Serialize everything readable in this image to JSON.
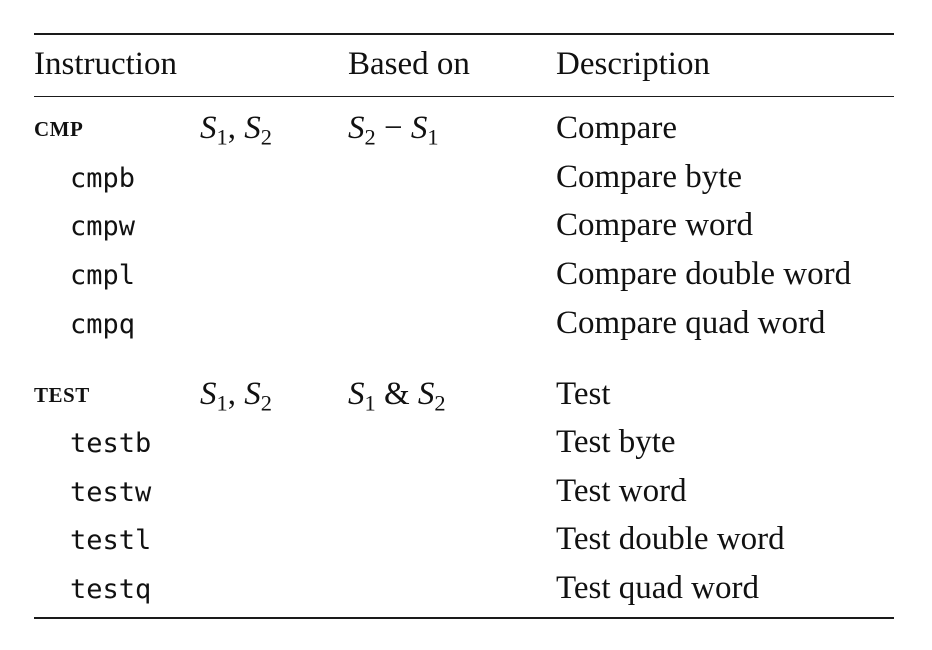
{
  "header": {
    "instruction": "Instruction",
    "based_on": "Based on",
    "description": "Description"
  },
  "groups": [
    {
      "name": "CMP",
      "operand_1": "S",
      "operand_1_sub": "1",
      "operand_sep": ", ",
      "operand_2": "S",
      "operand_2_sub": "2",
      "based_a": "S",
      "based_a_sub": "2",
      "based_op": " − ",
      "based_b": "S",
      "based_b_sub": "1",
      "description": "Compare",
      "variants": [
        {
          "mnemonic": "cmpb",
          "description": "Compare byte"
        },
        {
          "mnemonic": "cmpw",
          "description": "Compare word"
        },
        {
          "mnemonic": "cmpl",
          "description": "Compare double word"
        },
        {
          "mnemonic": "cmpq",
          "description": "Compare quad word"
        }
      ]
    },
    {
      "name": "TEST",
      "operand_1": "S",
      "operand_1_sub": "1",
      "operand_sep": ", ",
      "operand_2": "S",
      "operand_2_sub": "2",
      "based_a": "S",
      "based_a_sub": "1",
      "based_op": " & ",
      "based_b": "S",
      "based_b_sub": "2",
      "description": "Test",
      "variants": [
        {
          "mnemonic": "testb",
          "description": "Test byte"
        },
        {
          "mnemonic": "testw",
          "description": "Test word"
        },
        {
          "mnemonic": "testl",
          "description": "Test double word"
        },
        {
          "mnemonic": "testq",
          "description": "Test quad word"
        }
      ]
    }
  ]
}
